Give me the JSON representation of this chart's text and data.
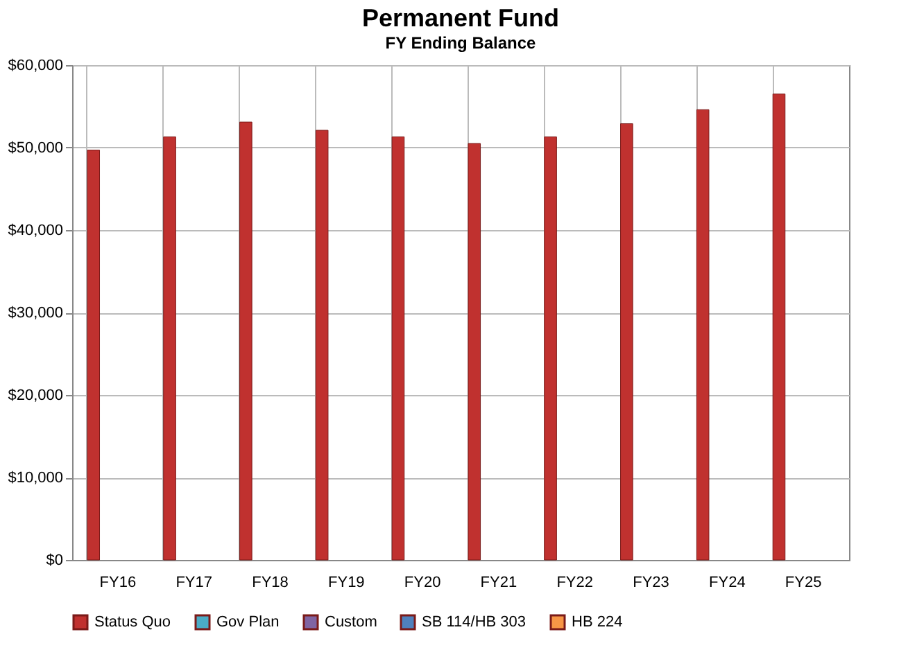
{
  "chart_data": {
    "type": "bar",
    "title": "Permanent Fund",
    "subtitle": "FY Ending Balance",
    "categories": [
      "FY16",
      "FY17",
      "FY18",
      "FY19",
      "FY20",
      "FY21",
      "FY22",
      "FY23",
      "FY24",
      "FY25"
    ],
    "series": [
      {
        "name": "Status Quo",
        "color": "#c0312f",
        "values": [
          49700,
          51300,
          53100,
          52100,
          51300,
          50500,
          51300,
          52900,
          54600,
          56500
        ]
      },
      {
        "name": "Gov Plan",
        "color": "#4bacc6",
        "values": [
          null,
          null,
          null,
          null,
          null,
          null,
          null,
          null,
          null,
          null
        ]
      },
      {
        "name": "Custom",
        "color": "#8064a2",
        "values": [
          null,
          null,
          null,
          null,
          null,
          null,
          null,
          null,
          null,
          null
        ]
      },
      {
        "name": "SB 114/HB 303",
        "color": "#4f81bd",
        "values": [
          null,
          null,
          null,
          null,
          null,
          null,
          null,
          null,
          null,
          null
        ]
      },
      {
        "name": "HB 224",
        "color": "#f79646",
        "values": [
          null,
          null,
          null,
          null,
          null,
          null,
          null,
          null,
          null,
          null
        ]
      }
    ],
    "ylim": [
      0,
      60000
    ],
    "yticks": [
      {
        "value": 0,
        "label": "$0"
      },
      {
        "value": 10000,
        "label": "$10,000"
      },
      {
        "value": 20000,
        "label": "$20,000"
      },
      {
        "value": 30000,
        "label": "$30,000"
      },
      {
        "value": 40000,
        "label": "$40,000"
      },
      {
        "value": 50000,
        "label": "$50,000"
      },
      {
        "value": 60000,
        "label": "$60,000"
      }
    ],
    "grid": true,
    "legend": "bottom"
  }
}
